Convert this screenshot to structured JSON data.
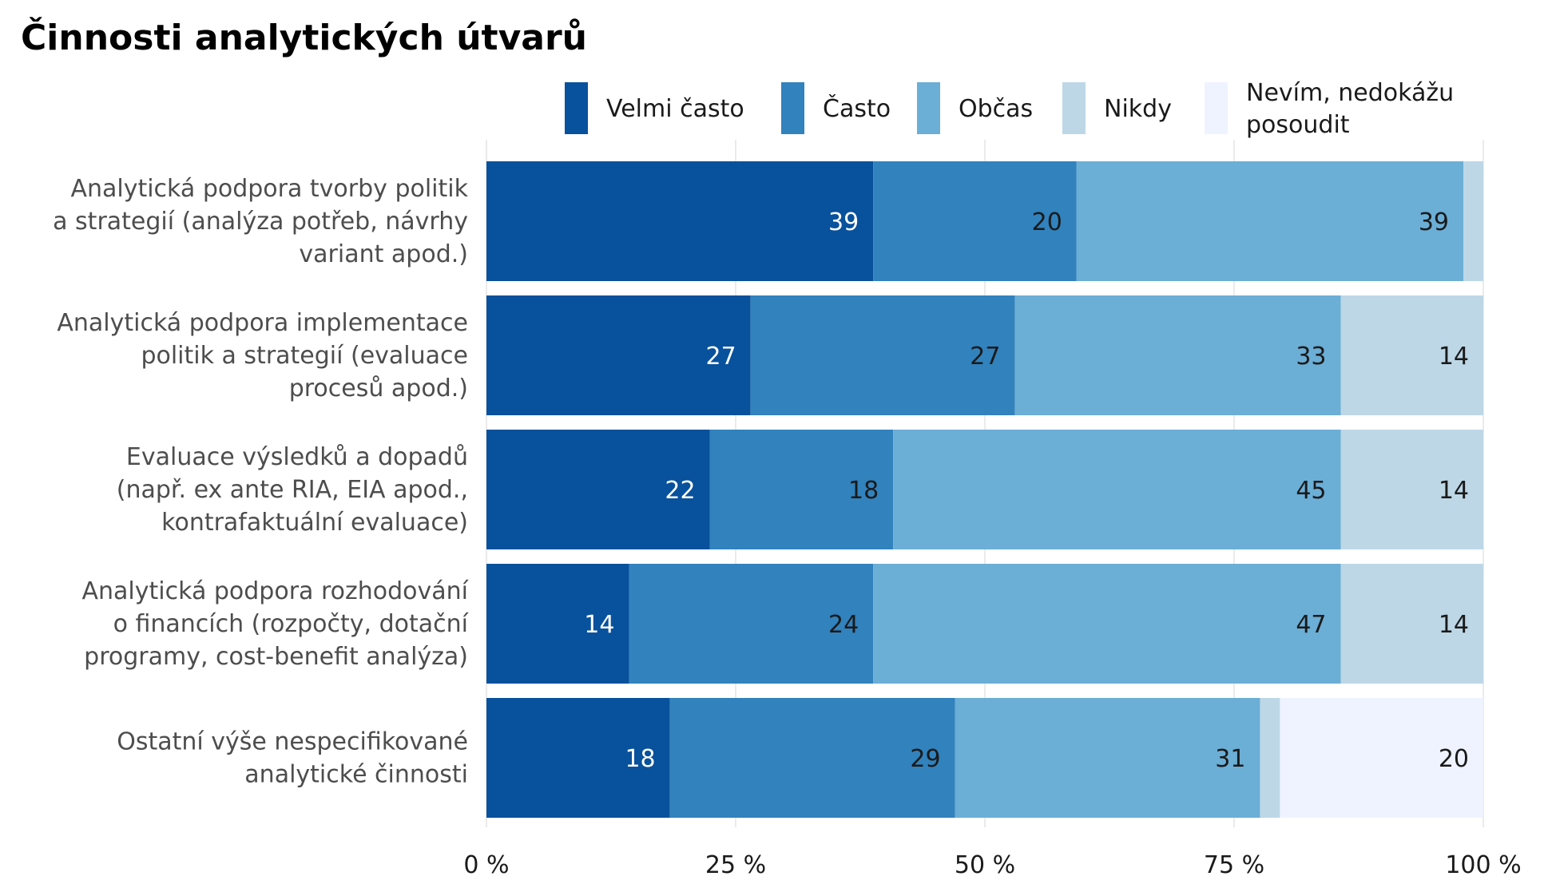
{
  "chart_data": {
    "type": "bar",
    "orientation": "horizontal",
    "stacked": true,
    "title": "Činnosti analytických útvarů",
    "xlabel": "",
    "ylabel": "",
    "xlim": [
      0,
      100
    ],
    "x_ticks": [
      "0 %",
      "25 %",
      "50 %",
      "75 %",
      "100 %"
    ],
    "x_tick_values": [
      0,
      25,
      50,
      75,
      100
    ],
    "grid": true,
    "legend_position": "top",
    "categories": [
      [
        "Analytická podpora tvorby politik",
        "a strategií (analýza potřeb, návrhy",
        "variant apod.)"
      ],
      [
        "Analytická podpora implementace",
        "politik a strategií (evaluace",
        "procesů apod.)"
      ],
      [
        "Evaluace výsledků a dopadů",
        "(např. ex ante RIA, EIA apod.,",
        "kontrafaktuální evaluace)"
      ],
      [
        "Analytická podpora rozhodování",
        "o financích (rozpočty, dotační",
        "programy, cost-benefit analýza)"
      ],
      [
        "Ostatní výše nespecifikované",
        "analytické činnosti"
      ]
    ],
    "series": [
      {
        "name": [
          "Velmi často"
        ],
        "color": "#08519c",
        "label_color": "#ffffff",
        "values": [
          38.8,
          26.5,
          22.4,
          14.3,
          18.4
        ],
        "labels": [
          "39",
          "27",
          "22",
          "14",
          "18"
        ]
      },
      {
        "name": [
          "Často"
        ],
        "color": "#3182bd",
        "label_color": "#1a1a1a",
        "values": [
          20.4,
          26.5,
          18.4,
          24.5,
          28.6
        ],
        "labels": [
          "20",
          "27",
          "18",
          "24",
          "29"
        ]
      },
      {
        "name": [
          "Občas"
        ],
        "color": "#6baed6",
        "label_color": "#1a1a1a",
        "values": [
          38.8,
          32.7,
          44.9,
          46.9,
          30.6
        ],
        "labels": [
          "39",
          "33",
          "45",
          "47",
          "31"
        ]
      },
      {
        "name": [
          "Nikdy"
        ],
        "color": "#bdd7e7",
        "label_color": "#1a1a1a",
        "values": [
          2.0,
          14.3,
          14.3,
          14.3,
          2.0
        ],
        "labels": [
          "",
          "14",
          "14",
          "14",
          ""
        ]
      },
      {
        "name": [
          "Nevím, nedokážu",
          "posoudit"
        ],
        "color": "#eff3ff",
        "label_color": "#1a1a1a",
        "values": [
          0,
          0,
          0,
          0,
          20.4
        ],
        "labels": [
          "",
          "",
          "",
          "",
          "20"
        ]
      }
    ]
  }
}
